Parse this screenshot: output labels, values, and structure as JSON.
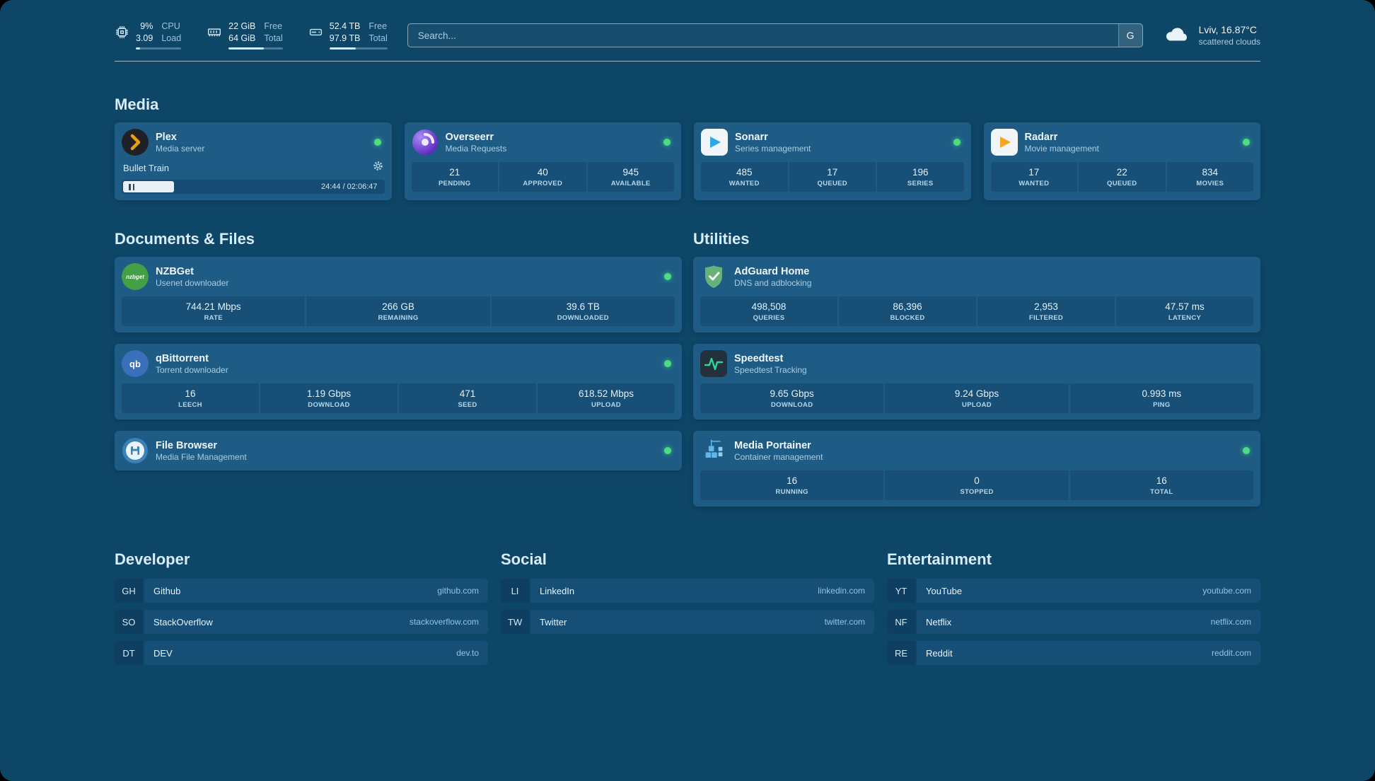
{
  "colors": {
    "background": "#0e4668",
    "card": "#1e5c85",
    "status_online": "#4ade80",
    "accent_link": "#8ec6e4"
  },
  "topbar": {
    "cpu": {
      "icon": "cpu-icon",
      "v1": "9%",
      "l1": "CPU",
      "v2": "3.09",
      "l2": "Load",
      "progress": 9
    },
    "memory": {
      "icon": "memory-icon",
      "v1": "22 GiB",
      "l1": "Free",
      "v2": "64 GiB",
      "l2": "Total",
      "progress": 65
    },
    "disk": {
      "icon": "disk-icon",
      "v1": "52.4 TB",
      "l1": "Free",
      "v2": "97.9 TB",
      "l2": "Total",
      "progress": 46
    },
    "search": {
      "placeholder": "Search...",
      "provider_button": "G"
    },
    "weather": {
      "icon": "cloud-icon",
      "location": "Lviv, 16.87°C",
      "condition": "scattered clouds"
    }
  },
  "sections": {
    "media": "Media",
    "documents": "Documents & Files",
    "utilities": "Utilities"
  },
  "services": {
    "plex": {
      "icon": "plex-icon",
      "name": "Plex",
      "subtitle": "Media server",
      "status": "online",
      "now_playing": {
        "title": "Bullet Train",
        "time": "24:44 / 02:06:47",
        "progress": 19.5
      }
    },
    "overseerr": {
      "icon": "overseerr-icon",
      "name": "Overseerr",
      "subtitle": "Media Requests",
      "status": "online",
      "stats": [
        {
          "value": "21",
          "label": "PENDING"
        },
        {
          "value": "40",
          "label": "APPROVED"
        },
        {
          "value": "945",
          "label": "AVAILABLE"
        }
      ]
    },
    "sonarr": {
      "icon": "sonarr-icon",
      "name": "Sonarr",
      "subtitle": "Series management",
      "status": "online",
      "stats": [
        {
          "value": "485",
          "label": "WANTED"
        },
        {
          "value": "17",
          "label": "QUEUED"
        },
        {
          "value": "196",
          "label": "SERIES"
        }
      ]
    },
    "radarr": {
      "icon": "radarr-icon",
      "name": "Radarr",
      "subtitle": "Movie management",
      "status": "online",
      "stats": [
        {
          "value": "17",
          "label": "WANTED"
        },
        {
          "value": "22",
          "label": "QUEUED"
        },
        {
          "value": "834",
          "label": "MOVIES"
        }
      ]
    },
    "nzbget": {
      "icon": "nzbget-icon",
      "icon_text": "nzbget",
      "name": "NZBGet",
      "subtitle": "Usenet downloader",
      "status": "online",
      "stats": [
        {
          "value": "744.21 Mbps",
          "label": "RATE"
        },
        {
          "value": "266 GB",
          "label": "REMAINING"
        },
        {
          "value": "39.6 TB",
          "label": "DOWNLOADED"
        }
      ]
    },
    "qbittorrent": {
      "icon": "qbittorrent-icon",
      "icon_text": "qb",
      "name": "qBittorrent",
      "subtitle": "Torrent downloader",
      "status": "online",
      "stats": [
        {
          "value": "16",
          "label": "LEECH"
        },
        {
          "value": "1.19 Gbps",
          "label": "DOWNLOAD"
        },
        {
          "value": "471",
          "label": "SEED"
        },
        {
          "value": "618.52 Mbps",
          "label": "UPLOAD"
        }
      ]
    },
    "filebrowser": {
      "icon": "filebrowser-icon",
      "name": "File Browser",
      "subtitle": "Media File Management",
      "status": "online"
    },
    "adguard": {
      "icon": "adguard-icon",
      "name": "AdGuard Home",
      "subtitle": "DNS and adblocking",
      "stats": [
        {
          "value": "498,508",
          "label": "QUERIES"
        },
        {
          "value": "86,396",
          "label": "BLOCKED"
        },
        {
          "value": "2,953",
          "label": "FILTERED"
        },
        {
          "value": "47.57 ms",
          "label": "LATENCY"
        }
      ]
    },
    "speedtest": {
      "icon": "speedtest-icon",
      "name": "Speedtest",
      "subtitle": "Speedtest Tracking",
      "stats": [
        {
          "value": "9.65 Gbps",
          "label": "DOWNLOAD"
        },
        {
          "value": "9.24 Gbps",
          "label": "UPLOAD"
        },
        {
          "value": "0.993 ms",
          "label": "PING"
        }
      ]
    },
    "portainer": {
      "icon": "portainer-icon",
      "name": "Media Portainer",
      "subtitle": "Container management",
      "status": "online",
      "stats": [
        {
          "value": "16",
          "label": "RUNNING"
        },
        {
          "value": "0",
          "label": "STOPPED"
        },
        {
          "value": "16",
          "label": "TOTAL"
        }
      ]
    }
  },
  "bookmarks": {
    "developer": {
      "title": "Developer",
      "items": [
        {
          "abbr": "GH",
          "name": "Github",
          "domain": "github.com"
        },
        {
          "abbr": "SO",
          "name": "StackOverflow",
          "domain": "stackoverflow.com"
        },
        {
          "abbr": "DT",
          "name": "DEV",
          "domain": "dev.to"
        }
      ]
    },
    "social": {
      "title": "Social",
      "items": [
        {
          "abbr": "LI",
          "name": "LinkedIn",
          "domain": "linkedin.com"
        },
        {
          "abbr": "TW",
          "name": "Twitter",
          "domain": "twitter.com"
        }
      ]
    },
    "entertainment": {
      "title": "Entertainment",
      "items": [
        {
          "abbr": "YT",
          "name": "YouTube",
          "domain": "youtube.com"
        },
        {
          "abbr": "NF",
          "name": "Netflix",
          "domain": "netflix.com"
        },
        {
          "abbr": "RE",
          "name": "Reddit",
          "domain": "reddit.com"
        }
      ]
    }
  }
}
